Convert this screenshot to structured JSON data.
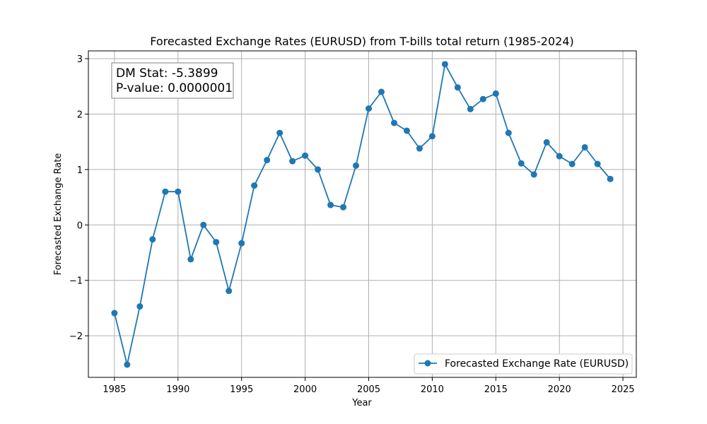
{
  "chart_data": {
    "type": "line",
    "title": "Forecasted Exchange Rates (EURUSD) from T-bills total return (1985-2024)",
    "xlabel": "Year",
    "ylabel": "Forecasted Exchange Rate",
    "xlim": [
      1982.95,
      2026.05
    ],
    "ylim": [
      -2.75,
      3.14
    ],
    "xticks": [
      1985,
      1990,
      1995,
      2000,
      2005,
      2010,
      2015,
      2020,
      2025
    ],
    "yticks": [
      -2,
      -1,
      0,
      1,
      2,
      3
    ],
    "ytick_labels": [
      "−2",
      "−1",
      "0",
      "1",
      "2",
      "3"
    ],
    "grid": true,
    "legend_position": "lower-right",
    "series": [
      {
        "name": "Forecasted Exchange Rate (EURUSD)",
        "color": "#1f77b4",
        "marker": "circle",
        "x": [
          1985,
          1986,
          1987,
          1988,
          1989,
          1990,
          1991,
          1992,
          1993,
          1994,
          1995,
          1996,
          1997,
          1998,
          1999,
          2000,
          2001,
          2002,
          2003,
          2004,
          2005,
          2006,
          2007,
          2008,
          2009,
          2010,
          2011,
          2012,
          2013,
          2014,
          2015,
          2016,
          2017,
          2018,
          2019,
          2020,
          2021,
          2022,
          2023,
          2024
        ],
        "y": [
          -1.59,
          -2.52,
          -1.47,
          -0.26,
          0.6,
          0.6,
          -0.62,
          0.0,
          -0.31,
          -1.19,
          -0.33,
          0.71,
          1.17,
          1.66,
          1.15,
          1.25,
          1.0,
          0.36,
          0.32,
          1.07,
          2.1,
          2.4,
          1.84,
          1.7,
          1.38,
          1.6,
          2.9,
          2.48,
          2.09,
          2.27,
          2.37,
          1.66,
          1.11,
          0.91,
          1.49,
          1.24,
          1.1,
          1.4,
          1.1,
          0.83
        ]
      }
    ],
    "annotation": {
      "line1": "DM Stat: -5.3899",
      "line2": "P-value: 0.0000001"
    }
  }
}
